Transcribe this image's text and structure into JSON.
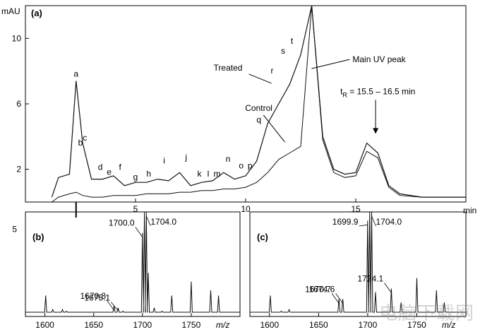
{
  "chart_data": [
    {
      "panel": "(a)",
      "type": "line",
      "ylabel": "mAU",
      "xlabel": "min",
      "xlim": [
        0,
        20
      ],
      "ylim": [
        0,
        12
      ],
      "xticks": [
        5,
        10,
        15
      ],
      "yticks": [
        2,
        6,
        10
      ],
      "series": [
        {
          "name": "Treated",
          "x": [
            1.2,
            1.5,
            2.0,
            2.3,
            2.6,
            3.0,
            3.5,
            4.0,
            4.5,
            5.0,
            5.5,
            6.0,
            6.5,
            7.0,
            7.5,
            8.0,
            8.5,
            9.0,
            9.5,
            10.0,
            10.5,
            11.0,
            11.5,
            12.0,
            12.5,
            13.0,
            13.5,
            14.0,
            14.5,
            15.0,
            15.5,
            16.0,
            16.5,
            17.0,
            18.0,
            19.0,
            20.0
          ],
          "y": [
            0.3,
            1.5,
            1.7,
            7.4,
            3.6,
            1.4,
            1.4,
            1.6,
            1.0,
            1.2,
            1.2,
            1.4,
            1.3,
            1.8,
            1.0,
            1.2,
            1.3,
            1.8,
            1.4,
            1.6,
            2.5,
            4.8,
            6.0,
            7.2,
            9.0,
            12.0,
            4.0,
            2.0,
            1.7,
            1.8,
            3.6,
            3.0,
            1.0,
            0.5,
            0.3,
            0.3,
            0.3
          ]
        },
        {
          "name": "Control",
          "x": [
            1.2,
            1.5,
            2.0,
            2.3,
            2.6,
            3.0,
            3.5,
            4.0,
            4.5,
            5.0,
            5.5,
            6.0,
            6.5,
            7.0,
            7.5,
            8.0,
            8.5,
            9.0,
            9.5,
            10.0,
            10.5,
            11.0,
            11.5,
            12.0,
            12.5,
            13.0,
            13.5,
            14.0,
            14.5,
            15.0,
            15.5,
            16.0,
            16.5,
            17.0,
            18.0,
            19.0,
            20.0
          ],
          "y": [
            0.0,
            0.3,
            0.5,
            0.6,
            0.4,
            0.3,
            0.3,
            0.4,
            0.4,
            0.4,
            0.5,
            0.5,
            0.5,
            0.6,
            0.6,
            0.7,
            0.7,
            0.8,
            0.8,
            0.9,
            1.2,
            1.8,
            2.6,
            3.0,
            3.4,
            12.0,
            3.8,
            1.8,
            1.5,
            1.6,
            3.1,
            2.7,
            0.9,
            0.4,
            0.3,
            0.3,
            0.3
          ]
        }
      ],
      "peak_labels": [
        {
          "label": "a",
          "x": 2.3,
          "y": 7.4
        },
        {
          "label": "b",
          "x": 2.5,
          "y": 3.2
        },
        {
          "label": "c",
          "x": 2.7,
          "y": 3.5
        },
        {
          "label": "d",
          "x": 3.4,
          "y": 1.7
        },
        {
          "label": "e",
          "x": 3.8,
          "y": 1.4
        },
        {
          "label": "f",
          "x": 4.3,
          "y": 1.7
        },
        {
          "label": "g",
          "x": 5.0,
          "y": 1.1
        },
        {
          "label": "h",
          "x": 5.6,
          "y": 1.3
        },
        {
          "label": "i",
          "x": 6.3,
          "y": 2.1
        },
        {
          "label": "j",
          "x": 7.3,
          "y": 2.3
        },
        {
          "label": "k",
          "x": 7.9,
          "y": 1.3
        },
        {
          "label": "l",
          "x": 8.3,
          "y": 1.3
        },
        {
          "label": "m",
          "x": 8.7,
          "y": 1.3
        },
        {
          "label": "n",
          "x": 9.2,
          "y": 2.2
        },
        {
          "label": "o",
          "x": 9.8,
          "y": 1.8
        },
        {
          "label": "p",
          "x": 10.2,
          "y": 1.8
        },
        {
          "label": "q",
          "x": 10.6,
          "y": 4.6
        },
        {
          "label": "r",
          "x": 11.2,
          "y": 7.6
        },
        {
          "label": "s",
          "x": 11.7,
          "y": 8.8
        },
        {
          "label": "t",
          "x": 12.1,
          "y": 9.4
        }
      ],
      "annotations": [
        {
          "text": "Treated",
          "x": 11.3,
          "y": 7.6
        },
        {
          "text": "Control",
          "x": 11.9,
          "y": 3.5
        },
        {
          "text": "Main UV peak",
          "x": 12.8,
          "y": 8.5
        },
        {
          "text": "t",
          "subscript": "R",
          "rest": " = 15.5 – 16.5 min",
          "x": 15.9,
          "y": 4.0
        }
      ]
    },
    {
      "panel": "(b)",
      "type": "line",
      "xlabel": "m/z",
      "xlim": [
        1580,
        1800
      ],
      "ylim": [
        0,
        6
      ],
      "xticks": [
        1600,
        1650,
        1700,
        1750
      ],
      "yticks": [
        5
      ],
      "peaks": [
        {
          "x": 1600.8,
          "y": 1.2
        },
        {
          "x": 1608.0,
          "y": 0.4
        },
        {
          "x": 1618.0,
          "y": 0.4
        },
        {
          "x": 1622.0,
          "y": 0.3
        },
        {
          "x": 1670.8,
          "y": 0.6,
          "label": "1670.8"
        },
        {
          "x": 1675.1,
          "y": 0.5,
          "label": "1675.1"
        },
        {
          "x": 1680.0,
          "y": 0.3
        },
        {
          "x": 1700.0,
          "y": 4.8,
          "label": "1700.0"
        },
        {
          "x": 1702.0,
          "y": 6.0
        },
        {
          "x": 1704.0,
          "y": 6.0,
          "label": "1704.0"
        },
        {
          "x": 1706.0,
          "y": 2.5
        },
        {
          "x": 1712.0,
          "y": 0.5
        },
        {
          "x": 1720.0,
          "y": 0.3
        },
        {
          "x": 1730.0,
          "y": 1.2
        },
        {
          "x": 1750.0,
          "y": 2.0
        },
        {
          "x": 1770.0,
          "y": 1.5
        },
        {
          "x": 1778.0,
          "y": 1.2
        }
      ]
    },
    {
      "panel": "(c)",
      "type": "line",
      "xlabel": "m/z",
      "xlim": [
        1580,
        1800
      ],
      "ylim": [
        0,
        6
      ],
      "xticks": [
        1600,
        1650,
        1700,
        1750
      ],
      "yticks": [],
      "peaks": [
        {
          "x": 1600.8,
          "y": 1.2
        },
        {
          "x": 1612.0,
          "y": 0.3
        },
        {
          "x": 1620.0,
          "y": 0.4
        },
        {
          "x": 1670.7,
          "y": 1.0,
          "label": "1670.7"
        },
        {
          "x": 1674.6,
          "y": 1.0,
          "label": "1674.6"
        },
        {
          "x": 1699.9,
          "y": 5.5,
          "label": "1699.9"
        },
        {
          "x": 1702.0,
          "y": 6.0
        },
        {
          "x": 1704.0,
          "y": 6.0,
          "label": "1704.0"
        },
        {
          "x": 1708.0,
          "y": 1.4
        },
        {
          "x": 1724.1,
          "y": 1.6,
          "label": "1724.1"
        },
        {
          "x": 1734.0,
          "y": 0.8
        },
        {
          "x": 1750.0,
          "y": 2.2
        },
        {
          "x": 1770.0,
          "y": 1.5
        },
        {
          "x": 1778.0,
          "y": 0.8
        }
      ]
    }
  ],
  "watermark": "电脑下载网"
}
